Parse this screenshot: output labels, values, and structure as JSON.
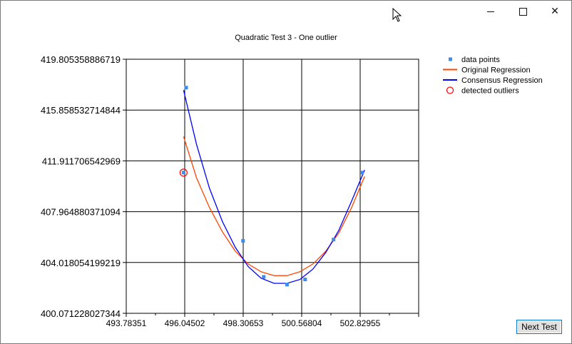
{
  "window": {
    "controls": {
      "minimize": "minimize",
      "maximize": "maximize",
      "close": "close"
    }
  },
  "buttons": {
    "next_test": "Next Test"
  },
  "chart_data": {
    "type": "scatter",
    "title": "Quadratic Test 3 - One outlier",
    "xlabel": "",
    "ylabel": "",
    "xlim": [
      493.78351,
      505.09106
    ],
    "ylim": [
      400.071228027344,
      419.805358886719
    ],
    "x_ticks": [
      "493.78351",
      "496.04502",
      "498.30653",
      "500.56804",
      "502.82955"
    ],
    "y_ticks": [
      "419.805358886719",
      "415.858532714844",
      "411.911706542969",
      "407.964880371094",
      "404.018054199219",
      "400.071228027344"
    ],
    "grid": true,
    "legend_position": "top-right",
    "legend": [
      "data points",
      "Original Regression",
      "Consensus Regression",
      "detected outliers"
    ],
    "colors": {
      "data_points": "#3c8cf0",
      "original_regression": "#ff4500",
      "consensus_regression": "#0000ff",
      "outliers": "#ff0000"
    },
    "data_points": {
      "x": [
        496.0,
        496.1,
        498.3,
        499.1,
        500.0,
        500.7,
        501.8,
        502.9
      ],
      "y": [
        411.0,
        417.6,
        405.7,
        402.9,
        402.3,
        402.7,
        405.8,
        411.0
      ]
    },
    "outliers": {
      "x": [
        496.0
      ],
      "y": [
        411.0
      ]
    },
    "original_regression": {
      "x": [
        496.0,
        496.5,
        497.0,
        497.5,
        498.0,
        498.5,
        499.0,
        499.5,
        500.0,
        500.5,
        501.0,
        501.5,
        502.0,
        502.5,
        503.0
      ],
      "y": [
        413.8,
        410.6,
        408.3,
        406.4,
        404.9,
        403.9,
        403.3,
        403.0,
        403.0,
        403.3,
        403.9,
        404.9,
        406.3,
        408.3,
        410.7
      ]
    },
    "consensus_regression": {
      "x": [
        496.0,
        496.5,
        497.0,
        497.5,
        498.0,
        498.5,
        499.0,
        499.5,
        500.0,
        500.5,
        501.0,
        501.5,
        502.0,
        502.5,
        503.0
      ],
      "y": [
        417.4,
        413.2,
        409.8,
        407.2,
        405.2,
        403.7,
        402.8,
        402.4,
        402.4,
        402.7,
        403.5,
        404.8,
        406.5,
        408.8,
        411.2
      ]
    }
  }
}
